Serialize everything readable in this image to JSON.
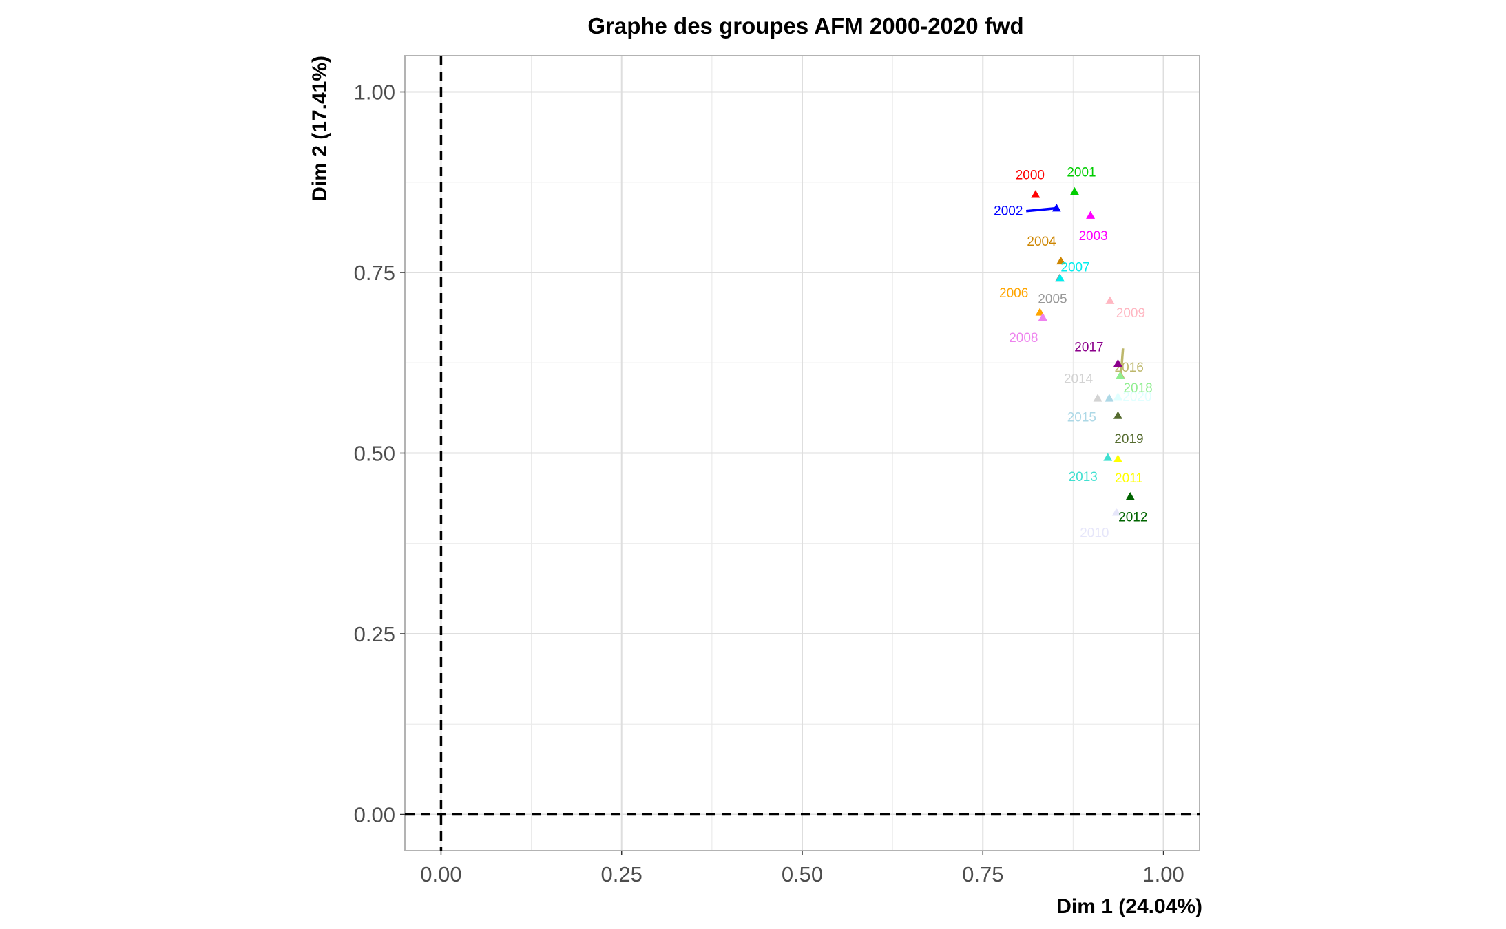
{
  "chart_data": {
    "type": "scatter",
    "title": "Graphe des groupes AFM 2000-2020 fwd",
    "xlabel": "Dim 1 (24.04%)",
    "ylabel": "Dim 2 (17.41%)",
    "xlim": [
      -0.05,
      1.05
    ],
    "ylim": [
      -0.05,
      1.05
    ],
    "xticks": [
      0.0,
      0.25,
      0.5,
      0.75,
      1.0
    ],
    "yticks": [
      0.0,
      0.25,
      0.5,
      0.75,
      1.0
    ],
    "xtick_labels": [
      "0.00",
      "0.25",
      "0.50",
      "0.75",
      "1.00"
    ],
    "ytick_labels": [
      "0.00",
      "0.25",
      "0.50",
      "0.75",
      "1.00"
    ],
    "grid": true,
    "reference_lines": {
      "x": 0,
      "y": 0,
      "style": "dashed"
    },
    "marker": "triangle",
    "points": [
      {
        "label": "2000",
        "x": 0.823,
        "y": 0.858,
        "color": "#ff0000"
      },
      {
        "label": "2001",
        "x": 0.877,
        "y": 0.862,
        "color": "#00cd00"
      },
      {
        "label": "2002",
        "x": 0.852,
        "y": 0.839,
        "color": "#0000ff",
        "segment_from": [
          0.81,
          0.835
        ]
      },
      {
        "label": "2003",
        "x": 0.899,
        "y": 0.829,
        "color": "#ff00ff"
      },
      {
        "label": "2004",
        "x": 0.858,
        "y": 0.766,
        "color": "#cd8500"
      },
      {
        "label": "2005",
        "x": 0.856,
        "y": 0.742,
        "color": "#999999"
      },
      {
        "label": "2006",
        "x": 0.829,
        "y": 0.695,
        "color": "#ffa500"
      },
      {
        "label": "2007",
        "x": 0.857,
        "y": 0.742,
        "color": "#00eeee"
      },
      {
        "label": "2008",
        "x": 0.833,
        "y": 0.688,
        "color": "#ee82ee"
      },
      {
        "label": "2009",
        "x": 0.926,
        "y": 0.711,
        "color": "#ffb6c1"
      },
      {
        "label": "2010",
        "x": 0.935,
        "y": 0.418,
        "color": "#e6e6fa"
      },
      {
        "label": "2011",
        "x": 0.937,
        "y": 0.492,
        "color": "#ffff00"
      },
      {
        "label": "2012",
        "x": 0.954,
        "y": 0.44,
        "color": "#006400"
      },
      {
        "label": "2013",
        "x": 0.923,
        "y": 0.494,
        "color": "#40e0d0"
      },
      {
        "label": "2014",
        "x": 0.909,
        "y": 0.576,
        "color": "#d3d3d3"
      },
      {
        "label": "2015",
        "x": 0.925,
        "y": 0.576,
        "color": "#add8e6"
      },
      {
        "label": "2016",
        "x": 0.941,
        "y": 0.607,
        "color": "#bdb76b",
        "segment_from": [
          0.944,
          0.645
        ]
      },
      {
        "label": "2017",
        "x": 0.937,
        "y": 0.624,
        "color": "#8b008b"
      },
      {
        "label": "2018",
        "x": 0.94,
        "y": 0.607,
        "color": "#90ee90"
      },
      {
        "label": "2019",
        "x": 0.937,
        "y": 0.552,
        "color": "#556b2f"
      },
      {
        "label": "2020",
        "x": 0.937,
        "y": 0.578,
        "color": "#e0ffff"
      }
    ]
  }
}
